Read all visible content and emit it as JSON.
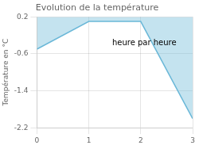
{
  "chart_data": {
    "type": "line",
    "title": "Evolution de la température",
    "y_label": "Température en °C",
    "x": [
      0,
      1,
      2,
      3
    ],
    "values": [
      -0.5,
      0.1,
      0.1,
      -2.0
    ],
    "fill_top": 0.2,
    "color": "#6bb8d8",
    "xlim": [
      0,
      3
    ],
    "xticks": [
      0,
      1,
      2,
      3
    ],
    "ylim": [
      -2.2,
      0.2
    ],
    "yticks": [
      0.2,
      -0.6,
      -1.4,
      -2.2
    ],
    "grid": true,
    "annotations": [
      {
        "text": "heure par heure",
        "x": 1.45,
        "y": -0.42
      }
    ]
  }
}
